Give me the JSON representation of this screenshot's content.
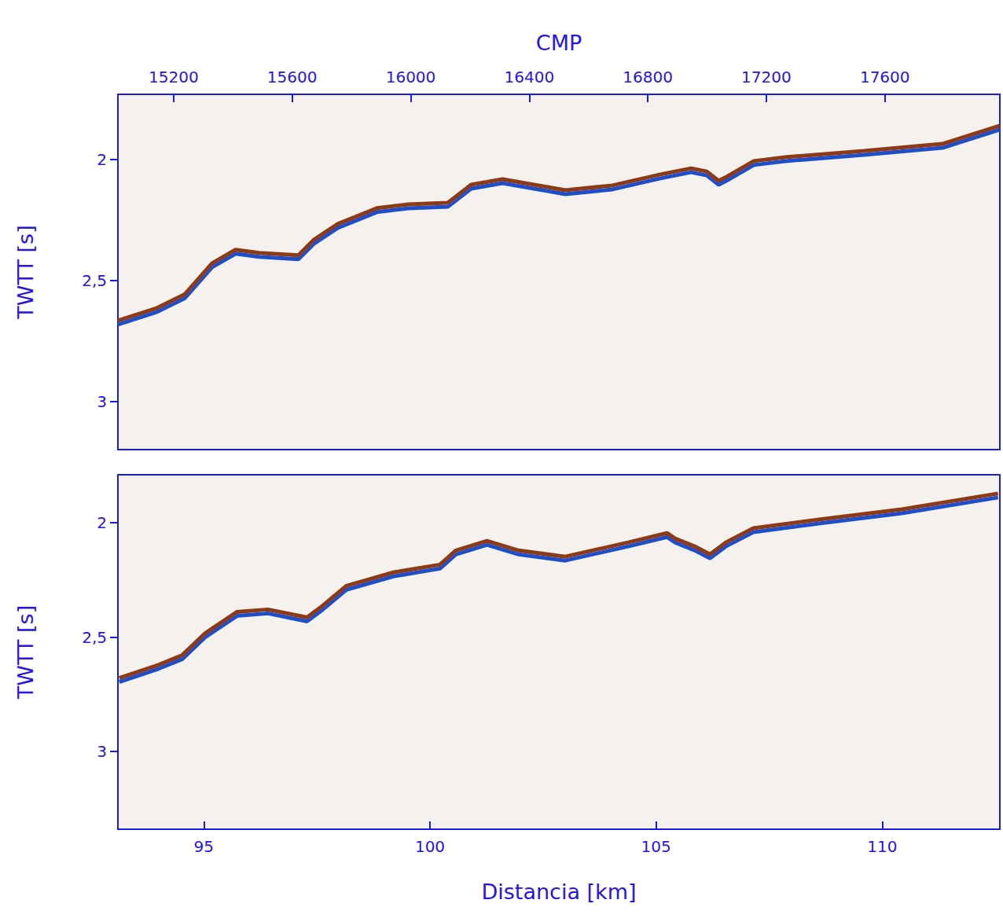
{
  "chart_data": [
    {
      "type": "line",
      "x_label": "CMP",
      "y_label": "TWTT [s]",
      "xlim": [
        15012,
        17988
      ],
      "xticks": [
        15200,
        15600,
        16000,
        16400,
        16800,
        17200,
        17600
      ],
      "ylim": [
        1.73,
        3.2
      ],
      "yticks": [
        2,
        {
          "value": 2.5,
          "label": "2,5"
        },
        3
      ],
      "log": false,
      "grid": false,
      "tick_labels": true,
      "series": [
        {
          "color": "#8b3a12",
          "line_style": "solid",
          "x": [
            15012,
            15144,
            15237,
            15330,
            15409,
            15489,
            15621,
            15674,
            15754,
            15886,
            15992,
            16125,
            16204,
            16310,
            16416,
            16522,
            16681,
            16840,
            16946,
            16999,
            17039,
            17066,
            17158,
            17264,
            17529,
            17794,
            17988
          ],
          "values": [
            2.666,
            2.614,
            2.558,
            2.429,
            2.373,
            2.386,
            2.396,
            2.331,
            2.266,
            2.201,
            2.185,
            2.179,
            2.104,
            2.081,
            2.104,
            2.127,
            2.107,
            2.062,
            2.036,
            2.049,
            2.088,
            2.071,
            2.006,
            1.99,
            1.964,
            1.935,
            1.86
          ]
        }
      ]
    },
    {
      "type": "line",
      "x_label": "Distancia [km]",
      "y_label": "TWTT [s]",
      "xlim": [
        93.1,
        112.6
      ],
      "xticks": [
        95,
        100,
        105,
        110
      ],
      "ylim": [
        1.79,
        3.34
      ],
      "yticks": [
        2,
        {
          "value": 2.5,
          "label": "2,5"
        },
        3
      ],
      "log": false,
      "grid": false,
      "tick_labels": true,
      "series": [
        {
          "color": "#8b3a12",
          "line_style": "solid",
          "x": [
            93.13,
            94.0,
            94.52,
            95.03,
            95.73,
            96.42,
            97.28,
            97.63,
            98.15,
            99.19,
            100.22,
            100.57,
            101.26,
            101.96,
            102.99,
            104.38,
            105.24,
            105.42,
            105.85,
            106.19,
            106.54,
            107.15,
            108.7,
            110.43,
            112.56
          ],
          "values": [
            2.679,
            2.621,
            2.579,
            2.483,
            2.39,
            2.379,
            2.414,
            2.362,
            2.276,
            2.217,
            2.183,
            2.121,
            2.079,
            2.121,
            2.148,
            2.086,
            2.045,
            2.069,
            2.103,
            2.138,
            2.086,
            2.024,
            1.983,
            1.941,
            1.872
          ]
        }
      ]
    }
  ]
}
